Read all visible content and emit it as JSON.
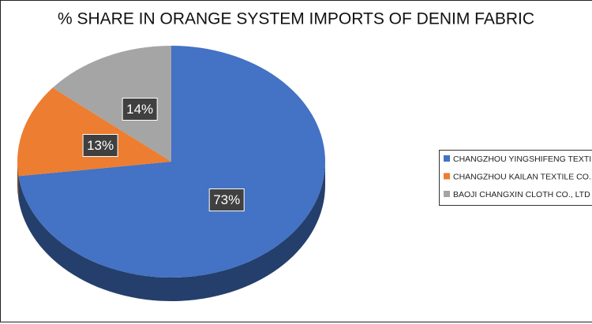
{
  "chart_data": {
    "type": "pie",
    "title": "% SHARE IN ORANGE SYSTEM IMPORTS OF DENIM FABRIC",
    "categories": [
      "CHANGZHOU YINGSHIFENG TEXTILE",
      "CHANGZHOU KAILAN TEXTILE CO.,LT",
      "BAOJI CHANGXIN CLOTH CO., LTD"
    ],
    "values": [
      73,
      13,
      14
    ],
    "value_labels": [
      "73%",
      "13%",
      "14%"
    ],
    "colors": [
      "#4472c4",
      "#ed7d31",
      "#a5a5a5"
    ],
    "legend": "right"
  }
}
